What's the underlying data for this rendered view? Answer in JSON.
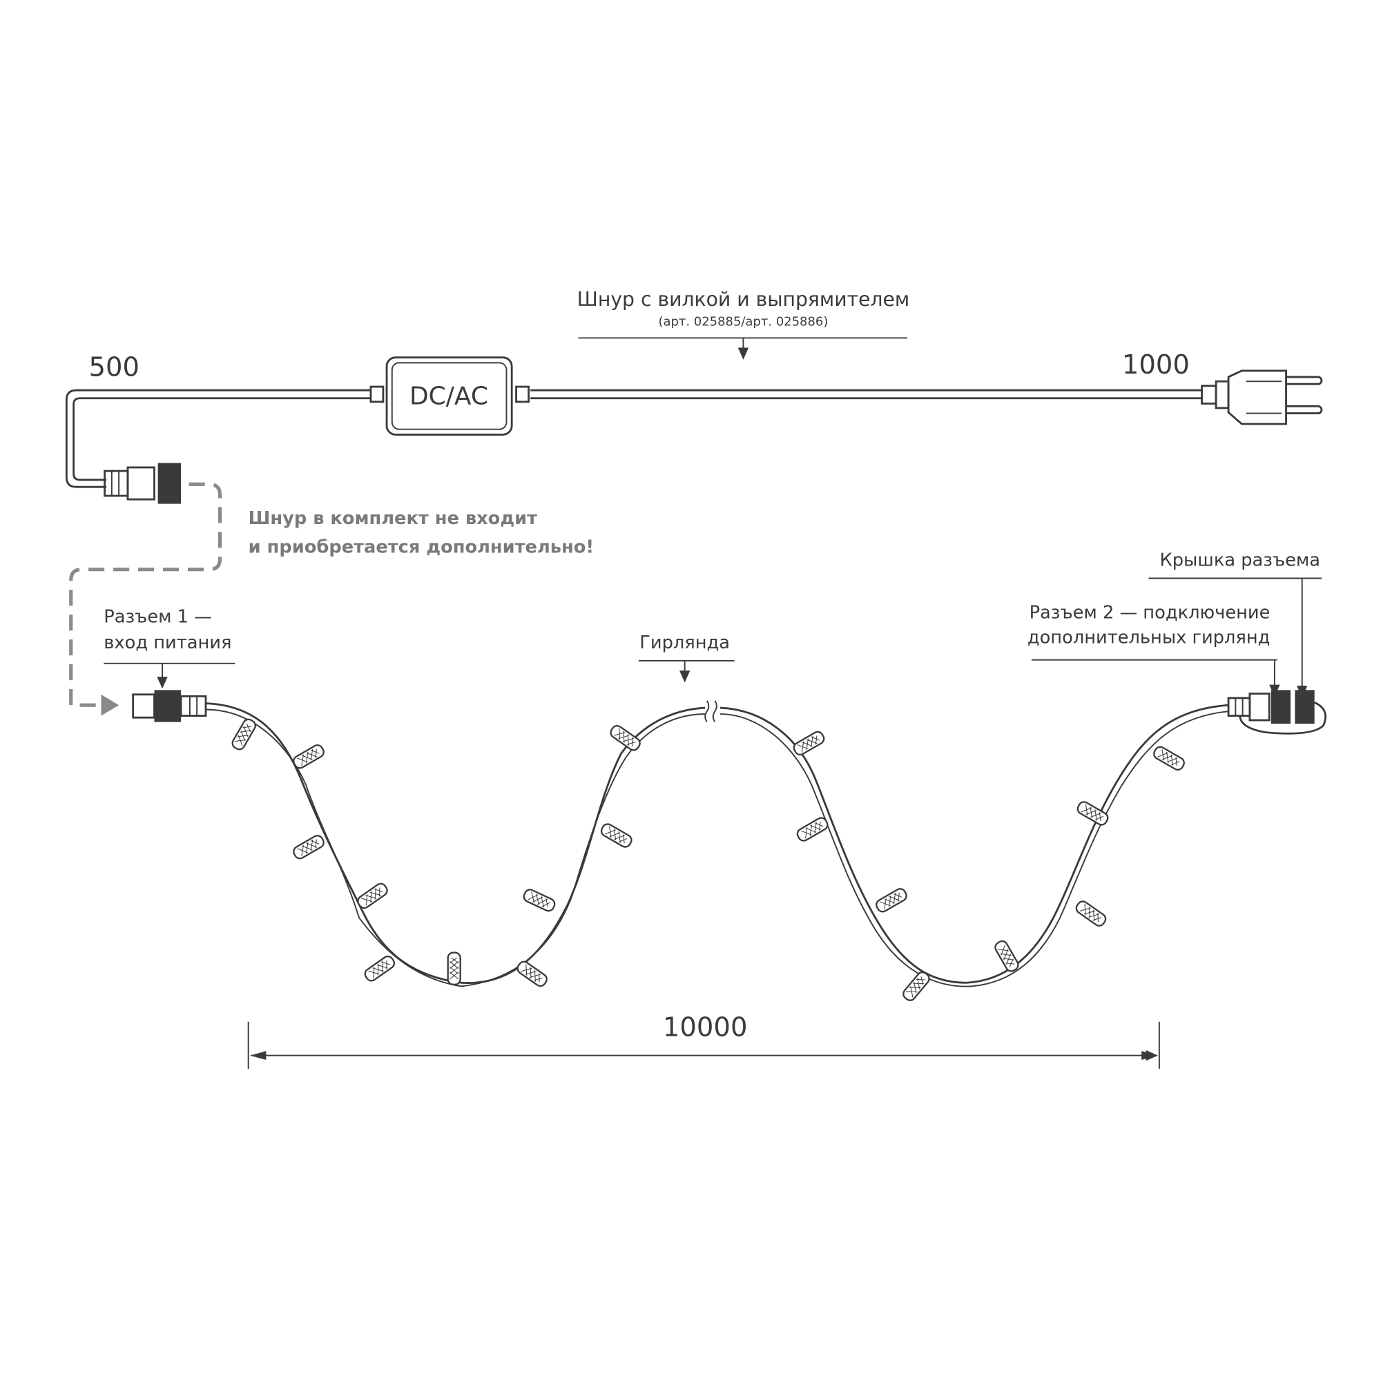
{
  "cord": {
    "title": "Шнур с вилкой и выпрямителем",
    "article": "(арт. 025885/арт. 025886)",
    "converter_label": "DC/AC",
    "length_left": "500",
    "length_right": "1000"
  },
  "note": {
    "line1": "Шнур в комплект не входит",
    "line2": "и приобретается дополнительно!"
  },
  "connector1": {
    "line1": "Разъем 1 —",
    "line2": "вход питания"
  },
  "garland": {
    "label": "Гирлянда",
    "length": "10000"
  },
  "connector2": {
    "line1": "Разъем 2 — подключение",
    "line2": "дополнительных гирлянд"
  },
  "cap": {
    "label": "Крышка разъема"
  },
  "colors": {
    "line": "#3a3a3a",
    "note": "#7a7a7a"
  }
}
